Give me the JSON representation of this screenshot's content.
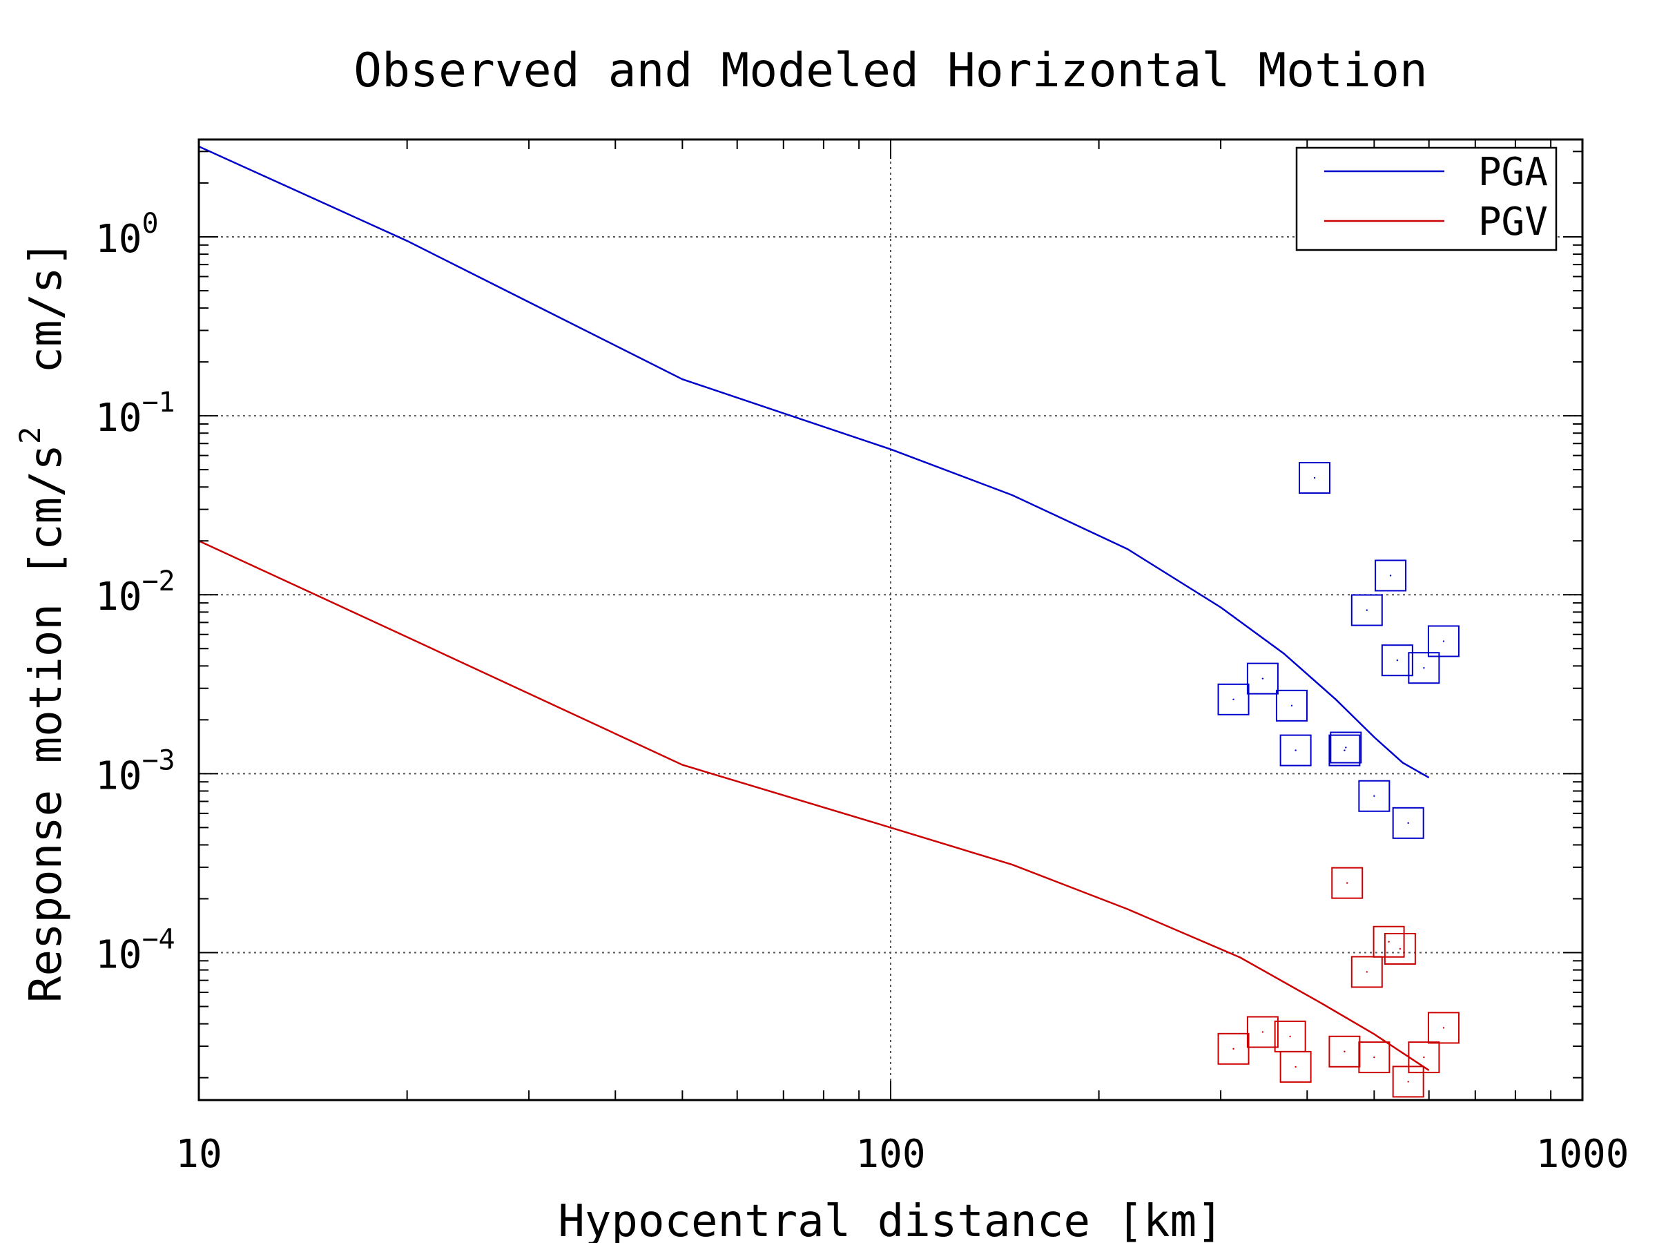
{
  "chart_data": {
    "type": "scatter",
    "title": "Observed and Modeled Horizontal Motion",
    "xlabel": "Hypocentral distance [km]",
    "ylabel": "Response motion [cm/s^2 cm/s]",
    "ylabel_parts": {
      "pre": "Response motion [cm/s",
      "sup": "2",
      "post": "  cm/s]"
    },
    "x_scale": "log",
    "y_scale": "log",
    "xlim": [
      10,
      1000
    ],
    "ylim": [
      1.5e-05,
      3.5
    ],
    "x_ticks": [
      {
        "value": 10,
        "label": "10"
      },
      {
        "value": 100,
        "label": "100"
      },
      {
        "value": 1000,
        "label": "1000"
      }
    ],
    "y_ticks": [
      {
        "value": 1,
        "base": "10",
        "exp": "0"
      },
      {
        "value": 0.1,
        "base": "10",
        "exp": "−1"
      },
      {
        "value": 0.01,
        "base": "10",
        "exp": "−2"
      },
      {
        "value": 0.001,
        "base": "10",
        "exp": "−3"
      },
      {
        "value": 0.0001,
        "base": "10",
        "exp": "−4"
      }
    ],
    "grid": true,
    "legend_position": "top-right",
    "series": [
      {
        "name": "PGA",
        "kind": "line",
        "color": "#0000cc",
        "x": [
          10,
          20,
          50,
          100,
          150,
          220,
          300,
          370,
          440,
          500,
          550,
          600
        ],
        "y": [
          3.2,
          0.95,
          0.16,
          0.065,
          0.036,
          0.018,
          0.0085,
          0.0047,
          0.0026,
          0.0016,
          0.00115,
          0.00095
        ]
      },
      {
        "name": "PGV",
        "kind": "line",
        "color": "#cc0000",
        "x": [
          10,
          20,
          50,
          100,
          150,
          220,
          320,
          420,
          500,
          600
        ],
        "y": [
          0.02,
          0.0058,
          0.00112,
          0.0005,
          0.00031,
          0.000175,
          9.4e-05,
          5.2e-05,
          3.5e-05,
          2.2e-05
        ]
      },
      {
        "name": "",
        "kind": "markers",
        "color": "#0000cc",
        "x": [
          410,
          528,
          488,
          455,
          540,
          590,
          630,
          345,
          380,
          313,
          385,
          453,
          500,
          560
        ],
        "y": [
          0.045,
          0.0128,
          0.0082,
          0.0014,
          0.0043,
          0.0039,
          0.0055,
          0.0034,
          0.0024,
          0.0026,
          0.00135,
          0.00135,
          0.00075,
          0.00053
        ]
      },
      {
        "name": "",
        "kind": "markers",
        "color": "#cc0000",
        "x": [
          457,
          525,
          545,
          488,
          630,
          345,
          378,
          313,
          385,
          453,
          500,
          590,
          560
        ],
        "y": [
          0.000245,
          0.000115,
          0.000105,
          7.8e-05,
          3.8e-05,
          3.6e-05,
          3.4e-05,
          2.9e-05,
          2.3e-05,
          2.8e-05,
          2.6e-05,
          2.6e-05,
          1.9e-05
        ]
      }
    ]
  }
}
